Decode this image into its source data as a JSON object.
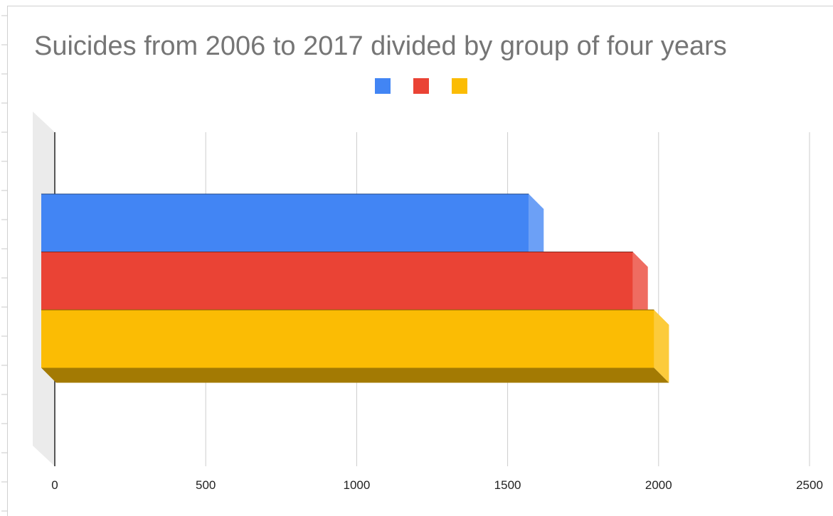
{
  "chart_data": {
    "type": "bar",
    "orientation": "horizontal",
    "style": "3d",
    "title": "Suicides from 2006 to 2017 divided by group of four years",
    "xlabel": "",
    "ylabel": "",
    "categories": [
      ""
    ],
    "series": [
      {
        "values": [
          1570
        ],
        "color": "#4285f4"
      },
      {
        "values": [
          1915
        ],
        "color": "#ea4335"
      },
      {
        "values": [
          1985
        ],
        "color": "#fbbc04"
      }
    ],
    "xlim": [
      0,
      2500
    ],
    "xticks": [
      "0",
      "500",
      "1000",
      "1500",
      "2000",
      "2500"
    ],
    "grid": true,
    "legend_position": "top"
  }
}
